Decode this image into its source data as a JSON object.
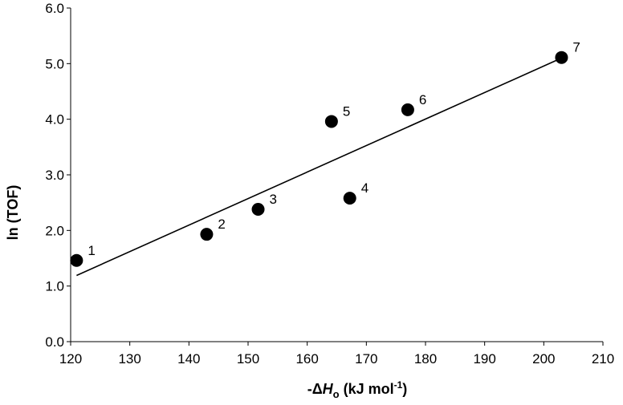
{
  "chart_data": {
    "type": "scatter",
    "x_axis": {
      "title_prefix": "-Δ",
      "title_italic": "H",
      "title_sub": "o",
      "title_unit": " (kJ mol",
      "title_sup": "-1",
      "title_close": ")",
      "min": 120,
      "max": 210,
      "ticks": [
        "120",
        "130",
        "140",
        "150",
        "160",
        "170",
        "180",
        "190",
        "200",
        "210"
      ]
    },
    "y_axis": {
      "title": "ln (TOF)",
      "min": 0,
      "max": 6,
      "ticks": [
        "0.0",
        "1.0",
        "2.0",
        "3.0",
        "4.0",
        "5.0",
        "6.0"
      ]
    },
    "points": [
      {
        "label": "1",
        "x": 121,
        "y": 1.46
      },
      {
        "label": "2",
        "x": 143,
        "y": 1.93
      },
      {
        "label": "3",
        "x": 151.7,
        "y": 2.38
      },
      {
        "label": "4",
        "x": 167.2,
        "y": 2.58
      },
      {
        "label": "5",
        "x": 164.1,
        "y": 3.96
      },
      {
        "label": "6",
        "x": 177,
        "y": 4.17
      },
      {
        "label": "7",
        "x": 203,
        "y": 5.11
      }
    ],
    "trendline": {
      "x1": 121,
      "y1": 1.19,
      "x2": 203,
      "y2": 5.1
    },
    "colors": {
      "marker": "#000000",
      "line": "#000000",
      "axis": "#000000"
    },
    "grid": false,
    "legend": "none"
  }
}
